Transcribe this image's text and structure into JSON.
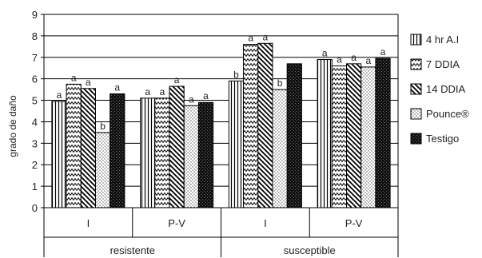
{
  "chart_data": {
    "type": "bar",
    "ylabel": "grado de daño",
    "ylim": [
      0,
      9
    ],
    "yticks": [
      "0",
      "1",
      "2",
      "3",
      "4",
      "5",
      "6",
      "7",
      "8",
      "9"
    ],
    "grid": true,
    "legend_position": "right",
    "groups": [
      "resistente",
      "susceptible"
    ],
    "categories": [
      "I",
      "P-V",
      "I",
      "P-V"
    ],
    "series": [
      {
        "name": "4 hr A.I",
        "pattern": "vertical-lines",
        "values": [
          4.95,
          5.1,
          5.9,
          6.9
        ],
        "labels": [
          "a",
          "a",
          "b",
          "a"
        ]
      },
      {
        "name": "7 DDIA",
        "pattern": "zigzag",
        "values": [
          5.75,
          5.1,
          7.6,
          6.6
        ],
        "labels": [
          "a",
          "a",
          "a",
          "a"
        ]
      },
      {
        "name": "14 DDIA",
        "pattern": "diagonal-lines",
        "values": [
          5.55,
          5.65,
          7.65,
          6.7
        ],
        "labels": [
          "a",
          "a",
          "a",
          "a"
        ]
      },
      {
        "name": "Pounce®",
        "pattern": "dots",
        "values": [
          3.5,
          4.75,
          5.5,
          6.55
        ],
        "labels": [
          "b",
          "a",
          "b",
          "a"
        ]
      },
      {
        "name": "Testigo",
        "pattern": "solid-black",
        "values": [
          5.3,
          4.9,
          6.7,
          6.95
        ],
        "labels": [
          "a",
          "a",
          "",
          "a"
        ]
      }
    ]
  }
}
